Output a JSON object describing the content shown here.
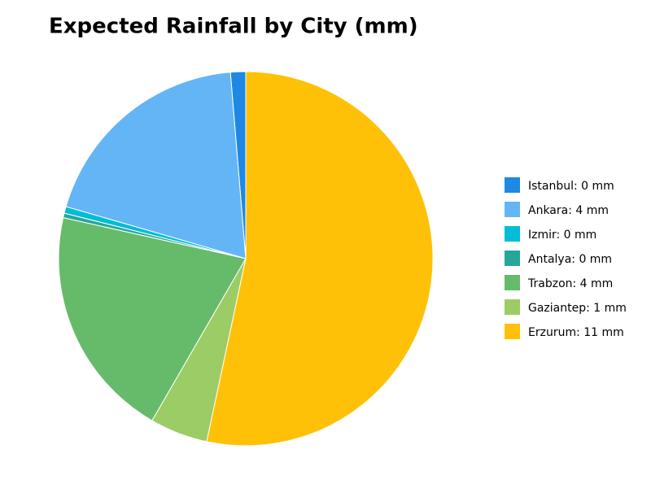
{
  "chart_data": {
    "type": "pie",
    "title": "Expected Rainfall by City (mm)",
    "categories": [
      "Istanbul: 0 mm",
      "Ankara: 4 mm",
      "Izmir: 0 mm",
      "Antalya: 0 mm",
      "Trabzon: 4 mm",
      "Gaziantep: 1 mm",
      "Erzurum: 11 mm"
    ],
    "values": [
      0.27,
      3.96,
      0.12,
      0.08,
      4.16,
      1.03,
      11.0
    ],
    "colors": [
      "#1e88e5",
      "#64b5f6",
      "#00bcd4",
      "#26a69a",
      "#66bb6a",
      "#9ccc65",
      "#ffc107"
    ],
    "legend": "right"
  }
}
